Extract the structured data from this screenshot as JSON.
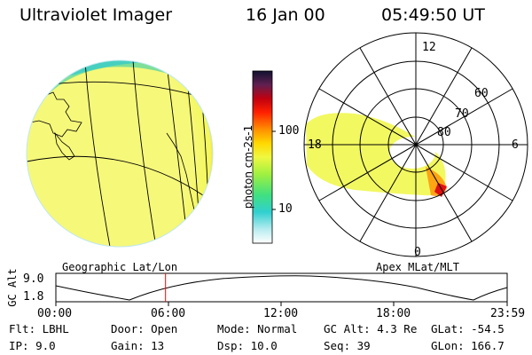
{
  "header": {
    "instrument": "Ultraviolet Imager",
    "date": "16 Jan 00",
    "time": "05:49:50 UT"
  },
  "colorbar": {
    "unit_label": "photon cm-2s-1",
    "ticks": [
      "100",
      "10"
    ]
  },
  "left_panel": {
    "caption": "Geographic Lat/Lon"
  },
  "polar_panel": {
    "caption": "Apex MLat/MLT",
    "mlt_labels": [
      "12",
      "18",
      "6",
      "0"
    ],
    "mlat_labels": [
      "60",
      "70",
      "80"
    ]
  },
  "timeline": {
    "axis_label": "GC Alt",
    "y_ticks": [
      "9.0",
      "1.8"
    ],
    "x_ticks": [
      "00:00",
      "06:00",
      "12:00",
      "18:00",
      "23:59"
    ],
    "current_time_fraction": 0.243,
    "marker_color": "#ff0000"
  },
  "info": {
    "row1": {
      "flt": "Flt: LBHL",
      "door": "Door: Open",
      "mode": "Mode: Normal",
      "gc_alt": "GC Alt: 4.3 Re",
      "glat": "GLat: -54.5"
    },
    "row2": {
      "ip": "IP: 9.0",
      "gain": "Gain: 13",
      "dsp": "Dsp: 10.0",
      "seq": "Seq: 39",
      "glon": "GLon: 166.7"
    }
  }
}
